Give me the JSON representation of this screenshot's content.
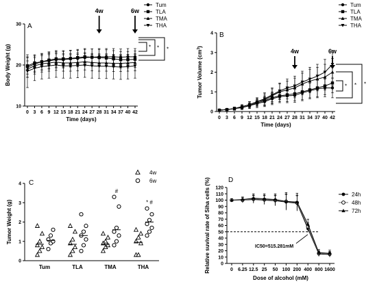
{
  "panels": {
    "A": {
      "letter": "A",
      "type": "line",
      "ylabel": "Body Weight (g)",
      "xlabel": "Time (days)",
      "x": [
        0,
        3,
        6,
        9,
        12,
        15,
        18,
        21,
        24,
        27,
        28,
        31,
        34,
        37,
        40,
        42
      ],
      "xticks": [
        "0",
        "3",
        "6",
        "9",
        "12",
        "15",
        "18",
        "21",
        "24",
        "27",
        "28",
        "31",
        "34",
        "37",
        "40",
        "42"
      ],
      "ylim": [
        10,
        30
      ],
      "yticks": [
        10,
        20,
        30
      ],
      "series": [
        {
          "name": "Tum",
          "marker": "circle",
          "values": [
            19.5,
            20.2,
            20.8,
            21,
            21.3,
            21.3,
            21.5,
            21.6,
            21.8,
            21.9,
            22,
            22,
            22,
            21.9,
            22,
            22
          ],
          "err": [
            2.5,
            2,
            2,
            2,
            2,
            2,
            2,
            2,
            2,
            2,
            2,
            2,
            2,
            2,
            2,
            2
          ]
        },
        {
          "name": "TLA",
          "marker": "square",
          "values": [
            19.8,
            20.5,
            20.8,
            21.2,
            21.5,
            21.5,
            21.6,
            21.8,
            22,
            21.9,
            21.8,
            21.7,
            21.5,
            21.3,
            21.3,
            21.4
          ],
          "err": [
            2,
            2,
            2,
            2,
            2,
            2,
            2,
            2,
            2,
            2,
            2,
            2,
            2,
            2,
            2,
            2
          ]
        },
        {
          "name": "TMA",
          "marker": "triangle",
          "values": [
            19,
            19.8,
            20.3,
            20.5,
            20.7,
            20.5,
            20.5,
            20.6,
            20.8,
            20.6,
            20.5,
            20.5,
            20.4,
            20.4,
            20.5,
            20.6
          ],
          "err": [
            2,
            2,
            2,
            2,
            2,
            2,
            2,
            2,
            2,
            2,
            2,
            2,
            2,
            2,
            2,
            2
          ]
        },
        {
          "name": "THA",
          "marker": "invtriangle",
          "values": [
            18.5,
            19.2,
            19.6,
            19.8,
            20,
            19.8,
            19.8,
            19.9,
            20,
            19.8,
            19.7,
            19.7,
            19.6,
            19.5,
            19.6,
            19.8
          ],
          "err": [
            4,
            3,
            3,
            3,
            3,
            3,
            3,
            3,
            3,
            3,
            3,
            3,
            3,
            3,
            3,
            3
          ]
        }
      ],
      "arrows": [
        {
          "x": 28,
          "label": "4w"
        },
        {
          "x": 42,
          "label": "6w"
        }
      ],
      "sig_marks": [
        "*",
        "*",
        "*"
      ]
    },
    "B": {
      "letter": "B",
      "type": "line",
      "ylabel": "Tumor Volume (cm",
      "ylabel_sup": "3",
      "ylabel_end": ")",
      "xlabel": "Time (days)",
      "x": [
        0,
        3,
        6,
        9,
        12,
        15,
        18,
        21,
        24,
        27,
        28,
        31,
        34,
        37,
        40,
        42
      ],
      "xticks": [
        "0",
        "3",
        "6",
        "9",
        "12",
        "15",
        "18",
        "21",
        "24",
        "27",
        "28",
        "31",
        "34",
        "37",
        "40",
        "42"
      ],
      "ylim": [
        0,
        4
      ],
      "yticks": [
        0,
        1,
        2,
        3,
        4
      ],
      "series": [
        {
          "name": "Tum",
          "marker": "circle",
          "values": [
            0.07,
            0.1,
            0.15,
            0.2,
            0.3,
            0.4,
            0.5,
            0.65,
            0.75,
            0.8,
            0.82,
            0.95,
            1.05,
            1.15,
            1.2,
            1.2
          ],
          "err": [
            0.03,
            0.05,
            0.08,
            0.1,
            0.15,
            0.2,
            0.25,
            0.3,
            0.3,
            0.35,
            0.35,
            0.4,
            0.4,
            0.45,
            0.45,
            0.5
          ]
        },
        {
          "name": "TLA",
          "marker": "square",
          "values": [
            0.07,
            0.1,
            0.15,
            0.2,
            0.3,
            0.45,
            0.55,
            0.7,
            0.8,
            0.85,
            0.9,
            1,
            1.1,
            1.2,
            1.3,
            1.45
          ],
          "err": [
            0.03,
            0.05,
            0.08,
            0.1,
            0.15,
            0.2,
            0.25,
            0.3,
            0.3,
            0.35,
            0.35,
            0.4,
            0.4,
            0.45,
            0.45,
            0.5
          ]
        },
        {
          "name": "TMA",
          "marker": "triangle",
          "values": [
            0.07,
            0.1,
            0.15,
            0.25,
            0.35,
            0.5,
            0.6,
            0.8,
            1,
            1.1,
            1.2,
            1.4,
            1.55,
            1.65,
            1.75,
            2.0
          ],
          "err": [
            0.03,
            0.05,
            0.08,
            0.1,
            0.15,
            0.2,
            0.3,
            0.35,
            0.4,
            0.45,
            0.5,
            0.55,
            0.6,
            0.6,
            0.65,
            0.7
          ]
        },
        {
          "name": "THA",
          "marker": "invtriangle",
          "values": [
            0.07,
            0.1,
            0.15,
            0.25,
            0.35,
            0.5,
            0.65,
            0.85,
            1.05,
            1.2,
            1.3,
            1.5,
            1.65,
            1.8,
            2.0,
            2.4
          ],
          "err": [
            0.03,
            0.05,
            0.08,
            0.1,
            0.15,
            0.2,
            0.3,
            0.35,
            0.4,
            0.45,
            0.5,
            0.55,
            0.6,
            0.6,
            0.65,
            0.7
          ]
        }
      ],
      "arrows": [
        {
          "x": 28,
          "label": "4w"
        },
        {
          "x": 42,
          "label": "6w"
        }
      ],
      "sig_marks": [
        "*",
        "*",
        "*"
      ]
    },
    "C": {
      "letter": "C",
      "type": "scatter",
      "ylabel": "Tumor Weight (g)",
      "categories": [
        "Tum",
        "TLA",
        "TMA",
        "THA"
      ],
      "ylim": [
        0,
        4
      ],
      "yticks": [
        0,
        1,
        2,
        3,
        4
      ],
      "legend": [
        {
          "name": "4w",
          "marker": "triangle"
        },
        {
          "name": "6w",
          "marker": "circle"
        }
      ],
      "groups": [
        {
          "category": "Tum",
          "w4": [
            0.3,
            0.5,
            0.7,
            0.8,
            1.0,
            1.4,
            1.8
          ],
          "w6": [
            0.6,
            0.9,
            1.0,
            1.1,
            1.3,
            1.6
          ],
          "mean4": 0.85,
          "mean6": 1.05,
          "mark": ""
        },
        {
          "category": "TLA",
          "w4": [
            0.3,
            0.5,
            0.7,
            0.9,
            1.1,
            1.5,
            1.8
          ],
          "w6": [
            0.5,
            0.8,
            1.1,
            1.3,
            1.5,
            1.8,
            2.4
          ],
          "mean4": 0.85,
          "mean6": 1.3,
          "mark": ""
        },
        {
          "category": "TMA",
          "w4": [
            0.5,
            0.7,
            0.8,
            0.9,
            1.0,
            1.2,
            1.4
          ],
          "w6": [
            0.8,
            1.0,
            1.3,
            1.5,
            1.7,
            2.8,
            3.3
          ],
          "mean4": 0.85,
          "mean6": 1.6,
          "mark": "#"
        },
        {
          "category": "THA",
          "w4": [
            0.3,
            0.3,
            0.9,
            1.0,
            1.2,
            1.4,
            1.6
          ],
          "w6": [
            1.3,
            1.5,
            1.7,
            1.9,
            2.1,
            2.4,
            2.7
          ],
          "mean4": 0.95,
          "mean6": 2.0,
          "mark": "* #"
        }
      ]
    },
    "D": {
      "letter": "D",
      "type": "line",
      "ylabel": "Relative suvival rate of Siha cells (%)",
      "xlabel": "Dose of alcohol (mM)",
      "categories": [
        "0",
        "6.25",
        "12.5",
        "25",
        "50",
        "100",
        "200",
        "400",
        "800",
        "1600"
      ],
      "ylim": [
        0,
        120
      ],
      "yticks": [
        0,
        10,
        20,
        30,
        40,
        50,
        60,
        70,
        80,
        90,
        100,
        110,
        120
      ],
      "series": [
        {
          "name": "24h",
          "marker": "circle",
          "values": [
            100,
            100,
            101,
            100,
            99,
            97,
            95,
            55,
            15,
            14
          ],
          "err": [
            2,
            4,
            6,
            7,
            8,
            12,
            12,
            6,
            4,
            4
          ]
        },
        {
          "name": "48h",
          "marker": "circle-open",
          "values": [
            100,
            100,
            102,
            101,
            100,
            98,
            96,
            58,
            16,
            15
          ],
          "err": [
            2,
            4,
            6,
            7,
            8,
            12,
            12,
            6,
            4,
            4
          ]
        },
        {
          "name": "72h",
          "marker": "triangle",
          "values": [
            100,
            101,
            103,
            102,
            101,
            98,
            97,
            62,
            17,
            16
          ],
          "err": [
            2,
            4,
            7,
            8,
            9,
            14,
            14,
            8,
            5,
            5
          ]
        }
      ],
      "ic50_line": 50,
      "ic50_label": "IC50=515.281mM"
    }
  },
  "colors": {
    "ink": "#000000",
    "grey": "#777777",
    "bg": "#ffffff"
  }
}
